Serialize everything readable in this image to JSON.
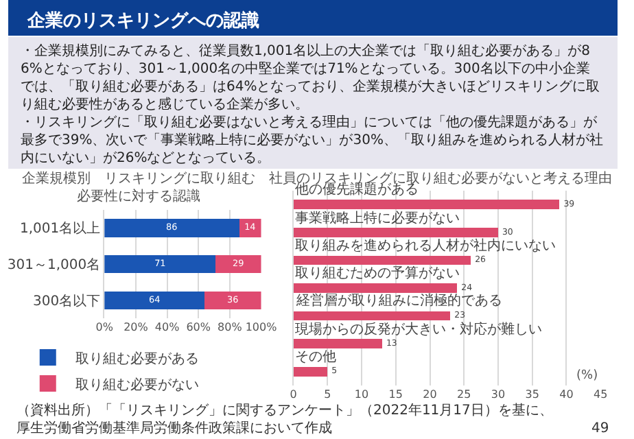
{
  "chart_data": [
    {
      "type": "other",
      "title": "企業のリスキリングへの認識",
      "subtitle": "・企業規模別にみてみると、従業員数1,001名以上の大企業では「取り組む必要がある」が86%となっており、301～1,000名の中堅企業では71%となっている。300名以下の中小企業では、「取り組む必要がある」は64%となっており、企業規模が大きいほどリスキリングに取り組む必要性があると感じている企業が多い。",
      "annotations": [
        "・リスキリングに「取り組む必要はないと考える理由」については「他の優先課題がある」が最多で39%、次いで「事業戦略上特に必要がない」が30%、「取り組みを進められる人材が社内にいない」が26%などとなっている。",
        "（資料出所）「「リスキリング」に関するアンケート」（2022年11月17日）を基に、厚生労働省労働基準局労働条件政策課において作成",
        "49"
      ]
    },
    {
      "type": "bar",
      "orientation": "horizontal",
      "stacked": true,
      "title": "企業規模別　リスキリングに取り組む必要性に対する認識",
      "categories": [
        "1,001名以上",
        "301～1,000名",
        "300名以下"
      ],
      "series": [
        {
          "name": "取り組む必要がある",
          "color": "#1a56b4",
          "values": [
            86,
            71,
            64
          ]
        },
        {
          "name": "取り組む必要がない",
          "color": "#df4a70",
          "values": [
            14,
            29,
            36
          ]
        }
      ],
      "xlim": [
        0,
        100
      ],
      "xticks": [
        {
          "value": 0,
          "label": "0%"
        },
        {
          "value": 20,
          "label": "20%"
        },
        {
          "value": 40,
          "label": "40%"
        },
        {
          "value": 60,
          "label": "60%"
        },
        {
          "value": 80,
          "label": "80%"
        },
        {
          "value": 100,
          "label": "100%"
        }
      ],
      "grid": "x",
      "legend": "bottom",
      "data_labels": true
    },
    {
      "type": "bar",
      "orientation": "horizontal",
      "title": "社員のリスキリングに取り組む必要がないと考える理由",
      "xlabel": "(%)",
      "categories": [
        "他の優先課題がある",
        "事業戦略上特に必要がない",
        "取り組みを進められる人材が社内にいない",
        "取り組むための予算がない",
        "経営層が取り組みに消極的である",
        "現場からの反発が大きい・対応が難しい",
        "その他"
      ],
      "series": [
        {
          "color": "#dc4a6c",
          "values": [
            39,
            30,
            26,
            24,
            23,
            13,
            5
          ]
        }
      ],
      "xlim": [
        0,
        45
      ],
      "xticks": [
        0,
        5,
        10,
        15,
        20,
        25,
        30,
        35,
        40,
        45
      ],
      "grid": "x",
      "data_labels": true
    }
  ]
}
